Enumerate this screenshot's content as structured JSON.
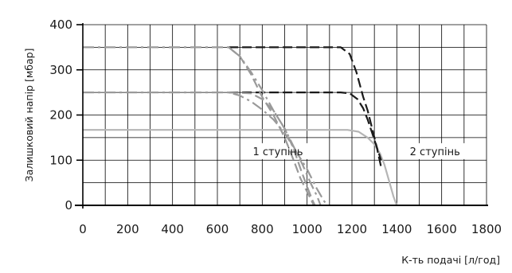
{
  "chart_data": {
    "type": "line",
    "title": "",
    "xlabel": "К-ть подачі [л/год]",
    "ylabel": "Залишковий напір [мбар]",
    "xlim": [
      0,
      1800
    ],
    "ylim": [
      0,
      400
    ],
    "xticks": [
      0,
      200,
      400,
      600,
      800,
      1000,
      1200,
      1400,
      1600,
      1800
    ],
    "yticks": [
      0,
      100,
      200,
      300,
      400
    ],
    "grid": true,
    "x_grid_step": 100,
    "y_grid_step": 50,
    "annotations": [
      {
        "text": "1 ступінь",
        "x": 870,
        "y": 120
      },
      {
        "text": "2 ступінь",
        "x": 1570,
        "y": 120
      }
    ],
    "series": [
      {
        "style": "solid",
        "color": "#b5b5b5",
        "points": [
          [
            0,
            167
          ],
          [
            1180,
            167
          ],
          [
            1230,
            163
          ],
          [
            1270,
            150
          ],
          [
            1300,
            135
          ],
          [
            1325,
            115
          ],
          [
            1345,
            90
          ],
          [
            1365,
            55
          ],
          [
            1385,
            20
          ],
          [
            1400,
            0
          ]
        ]
      },
      {
        "style": "dashed",
        "color": "#1a1a1a",
        "points": [
          [
            650,
            350
          ],
          [
            1150,
            350
          ],
          [
            1190,
            335
          ],
          [
            1220,
            295
          ],
          [
            1250,
            240
          ],
          [
            1270,
            210
          ],
          [
            1290,
            170
          ],
          [
            1310,
            130
          ],
          [
            1330,
            85
          ]
        ]
      },
      {
        "style": "dashed",
        "color": "#1a1a1a",
        "points": [
          [
            650,
            250
          ],
          [
            1150,
            250
          ],
          [
            1190,
            248
          ],
          [
            1225,
            235
          ],
          [
            1250,
            215
          ],
          [
            1270,
            190
          ],
          [
            1290,
            160
          ],
          [
            1310,
            130
          ],
          [
            1330,
            100
          ]
        ]
      },
      {
        "style": "dashdot",
        "color": "#9a9a9a",
        "points": [
          [
            0,
            350
          ],
          [
            650,
            350
          ],
          [
            700,
            330
          ],
          [
            750,
            295
          ],
          [
            800,
            255
          ],
          [
            850,
            210
          ],
          [
            900,
            170
          ],
          [
            940,
            130
          ],
          [
            980,
            90
          ],
          [
            1015,
            50
          ],
          [
            1045,
            20
          ],
          [
            1060,
            0
          ]
        ]
      },
      {
        "style": "dashdot",
        "color": "#9a9a9a",
        "points": [
          [
            0,
            250
          ],
          [
            650,
            250
          ],
          [
            700,
            243
          ],
          [
            750,
            230
          ],
          [
            800,
            212
          ],
          [
            850,
            190
          ],
          [
            900,
            160
          ],
          [
            950,
            120
          ],
          [
            1000,
            80
          ],
          [
            1040,
            40
          ],
          [
            1075,
            10
          ],
          [
            1090,
            0
          ]
        ]
      },
      {
        "style": "dashed",
        "color": "#9a9a9a",
        "points": [
          [
            650,
            350
          ],
          [
            700,
            330
          ],
          [
            750,
            290
          ],
          [
            800,
            240
          ],
          [
            850,
            200
          ],
          [
            900,
            150
          ],
          [
            940,
            100
          ],
          [
            970,
            60
          ],
          [
            1000,
            30
          ],
          [
            1020,
            10
          ],
          [
            1030,
            0
          ]
        ]
      },
      {
        "style": "dashed",
        "color": "#9a9a9a",
        "points": [
          [
            650,
            250
          ],
          [
            750,
            248
          ],
          [
            800,
            235
          ],
          [
            850,
            210
          ],
          [
            900,
            170
          ],
          [
            940,
            125
          ],
          [
            975,
            75
          ],
          [
            1005,
            35
          ],
          [
            1025,
            10
          ],
          [
            1035,
            0
          ]
        ]
      }
    ]
  }
}
